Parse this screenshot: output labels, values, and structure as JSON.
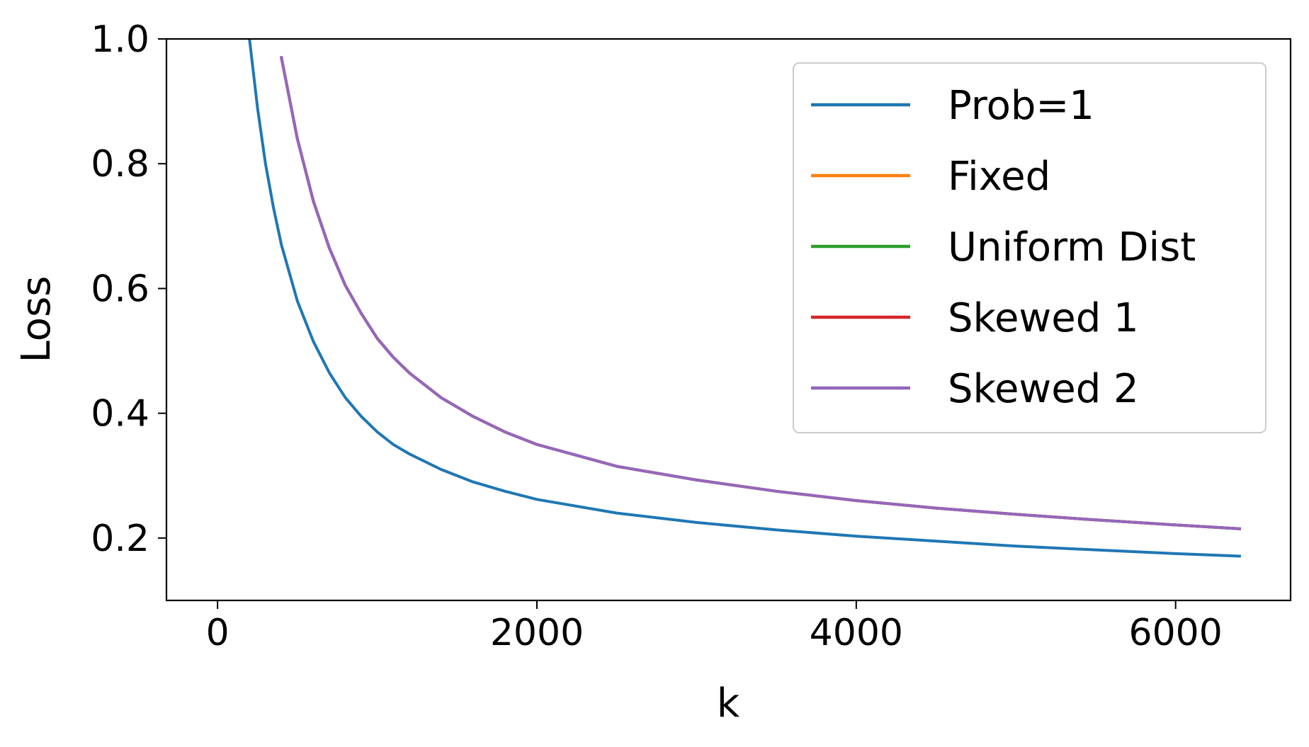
{
  "chart_data": {
    "type": "line",
    "title": "",
    "xlabel": "k",
    "ylabel": "Loss",
    "xlim": [
      -320,
      6720
    ],
    "ylim": [
      0.1,
      1.0
    ],
    "xticks": [
      0,
      2000,
      4000,
      6000
    ],
    "yticks": [
      0.2,
      0.4,
      0.6,
      0.8,
      1.0
    ],
    "xtick_labels": [
      "0",
      "2000",
      "4000",
      "6000"
    ],
    "ytick_labels": [
      "0.2",
      "0.4",
      "0.6",
      "0.8",
      "1.0"
    ],
    "grid": false,
    "legend_position": "top-right",
    "x": [
      200,
      250,
      300,
      350,
      400,
      500,
      600,
      700,
      800,
      900,
      1000,
      1100,
      1200,
      1400,
      1600,
      1800,
      2000,
      2500,
      3000,
      3500,
      4000,
      4500,
      5000,
      5500,
      6000,
      6400
    ],
    "series": [
      {
        "name": "Prob=1",
        "color": "#1f77b4",
        "values": [
          1.0,
          0.89,
          0.8,
          0.73,
          0.67,
          0.58,
          0.515,
          0.465,
          0.425,
          0.395,
          0.37,
          0.35,
          0.335,
          0.31,
          0.29,
          0.275,
          0.262,
          0.24,
          0.225,
          0.213,
          0.203,
          0.195,
          0.187,
          0.181,
          0.175,
          0.171
        ]
      },
      {
        "name": "Fixed",
        "color": "#ff7f0e",
        "values": [
          null,
          null,
          null,
          null,
          0.97,
          0.84,
          0.74,
          0.665,
          0.605,
          0.56,
          0.52,
          0.49,
          0.465,
          0.425,
          0.395,
          0.37,
          0.35,
          0.315,
          0.293,
          0.275,
          0.26,
          0.248,
          0.238,
          0.229,
          0.221,
          0.215
        ]
      },
      {
        "name": "Uniform Dist",
        "color": "#2ca02c",
        "values": [
          null,
          null,
          null,
          null,
          0.97,
          0.84,
          0.74,
          0.665,
          0.605,
          0.56,
          0.52,
          0.49,
          0.465,
          0.425,
          0.395,
          0.37,
          0.35,
          0.315,
          0.293,
          0.275,
          0.26,
          0.248,
          0.238,
          0.229,
          0.221,
          0.215
        ]
      },
      {
        "name": "Skewed 1",
        "color": "#d62728",
        "values": [
          null,
          null,
          null,
          null,
          0.97,
          0.84,
          0.74,
          0.665,
          0.605,
          0.56,
          0.52,
          0.49,
          0.465,
          0.425,
          0.395,
          0.37,
          0.35,
          0.315,
          0.293,
          0.275,
          0.26,
          0.248,
          0.238,
          0.229,
          0.221,
          0.215
        ]
      },
      {
        "name": "Skewed 2",
        "color": "#9467bd",
        "values": [
          null,
          null,
          null,
          null,
          0.97,
          0.84,
          0.74,
          0.665,
          0.605,
          0.56,
          0.52,
          0.49,
          0.465,
          0.425,
          0.395,
          0.37,
          0.35,
          0.315,
          0.293,
          0.275,
          0.26,
          0.248,
          0.238,
          0.229,
          0.221,
          0.215
        ]
      }
    ]
  }
}
